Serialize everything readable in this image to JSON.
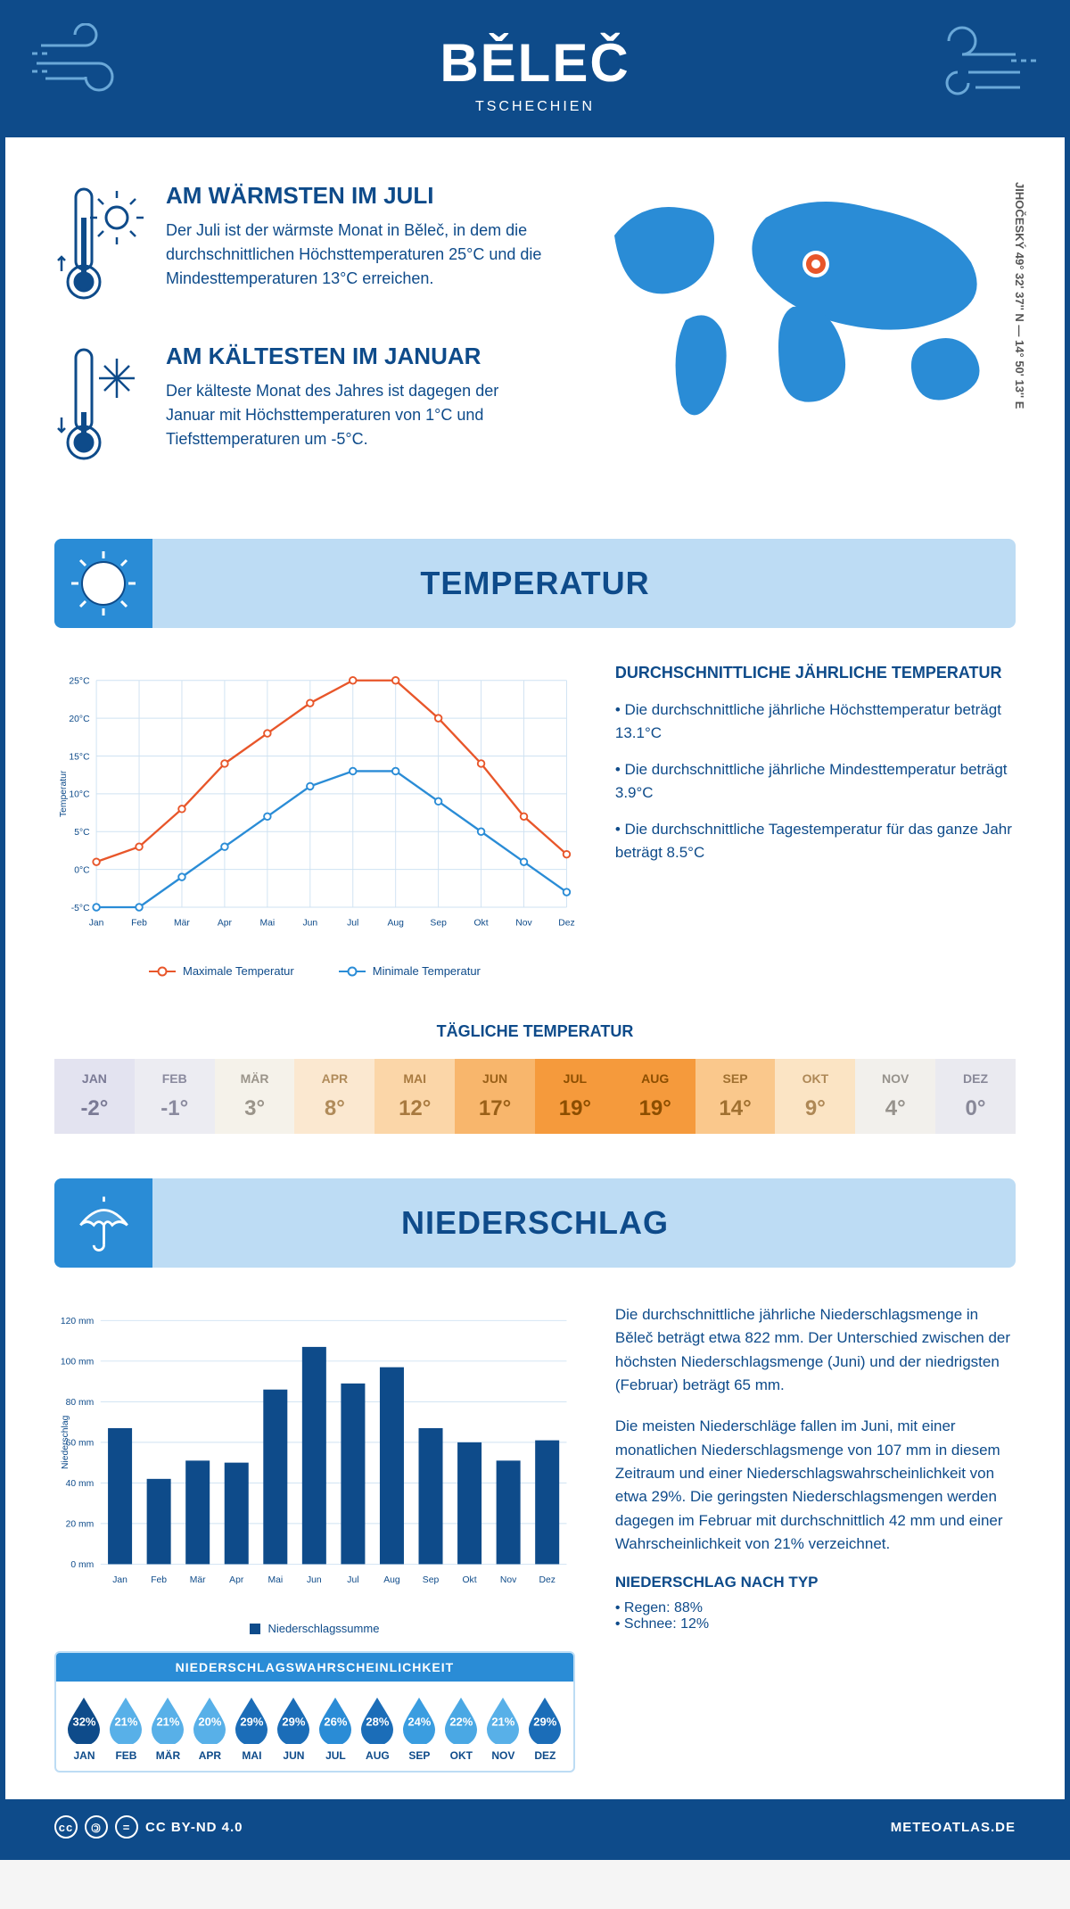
{
  "header": {
    "city": "BĚLEČ",
    "country": "TSCHECHIEN"
  },
  "coords": "JIHOČESKÝ    49° 32' 37'' N — 14° 50' 13'' E",
  "warmest": {
    "title": "AM WÄRMSTEN IM JULI",
    "text": "Der Juli ist der wärmste Monat in Běleč, in dem die durchschnittlichen Höchsttemperaturen 25°C und die Mindesttemperaturen 13°C erreichen."
  },
  "coldest": {
    "title": "AM KÄLTESTEN IM JANUAR",
    "text": "Der kälteste Monat des Jahres ist dagegen der Januar mit Höchsttemperaturen von 1°C und Tiefsttemperaturen um -5°C."
  },
  "sections": {
    "temp": "TEMPERATUR",
    "precip": "NIEDERSCHLAG"
  },
  "temp_chart": {
    "months": [
      "Jan",
      "Feb",
      "Mär",
      "Apr",
      "Mai",
      "Jun",
      "Jul",
      "Aug",
      "Sep",
      "Okt",
      "Nov",
      "Dez"
    ],
    "max": [
      1,
      3,
      8,
      14,
      18,
      22,
      25,
      25,
      20,
      14,
      7,
      2
    ],
    "min": [
      -5,
      -5,
      -1,
      3,
      7,
      11,
      13,
      13,
      9,
      5,
      1,
      -3
    ],
    "ylabel": "Temperatur",
    "yticks": [
      "-5°C",
      "0°C",
      "5°C",
      "10°C",
      "15°C",
      "20°C",
      "25°C"
    ],
    "ylim": [
      -5,
      25
    ],
    "max_color": "#e8562a",
    "min_color": "#2a8cd6",
    "grid_color": "#cfe2f2",
    "legend_max": "Maximale Temperatur",
    "legend_min": "Minimale Temperatur"
  },
  "temp_text": {
    "title": "DURCHSCHNITTLICHE JÄHRLICHE TEMPERATUR",
    "b1": "• Die durchschnittliche jährliche Höchsttemperatur beträgt 13.1°C",
    "b2": "• Die durchschnittliche jährliche Mindesttemperatur beträgt 3.9°C",
    "b3": "• Die durchschnittliche Tagestemperatur für das ganze Jahr beträgt 8.5°C"
  },
  "daily": {
    "title": "TÄGLICHE TEMPERATUR",
    "cells": [
      {
        "mon": "JAN",
        "val": "-2°",
        "bg": "#e3e3f0",
        "fg": "#7a7a95"
      },
      {
        "mon": "FEB",
        "val": "-1°",
        "bg": "#ececf2",
        "fg": "#8a8a9e"
      },
      {
        "mon": "MÄR",
        "val": "3°",
        "bg": "#f5f2ea",
        "fg": "#9a948a"
      },
      {
        "mon": "APR",
        "val": "8°",
        "bg": "#fbe8d0",
        "fg": "#b08b5a"
      },
      {
        "mon": "MAI",
        "val": "12°",
        "bg": "#fbd6a8",
        "fg": "#a87a40"
      },
      {
        "mon": "JUN",
        "val": "17°",
        "bg": "#f8b66c",
        "fg": "#9a6018"
      },
      {
        "mon": "JUL",
        "val": "19°",
        "bg": "#f59a3c",
        "fg": "#8c4e00"
      },
      {
        "mon": "AUG",
        "val": "19°",
        "bg": "#f59a3c",
        "fg": "#8c4e00"
      },
      {
        "mon": "SEP",
        "val": "14°",
        "bg": "#fac88c",
        "fg": "#a07030"
      },
      {
        "mon": "OKT",
        "val": "9°",
        "bg": "#fbe4c4",
        "fg": "#ae8856"
      },
      {
        "mon": "NOV",
        "val": "4°",
        "bg": "#f2f0ec",
        "fg": "#96928c"
      },
      {
        "mon": "DEZ",
        "val": "0°",
        "bg": "#eaeaf0",
        "fg": "#888898"
      }
    ]
  },
  "precip_chart": {
    "months": [
      "Jan",
      "Feb",
      "Mär",
      "Apr",
      "Mai",
      "Jun",
      "Jul",
      "Aug",
      "Sep",
      "Okt",
      "Nov",
      "Dez"
    ],
    "values": [
      67,
      42,
      51,
      50,
      86,
      107,
      89,
      97,
      67,
      60,
      51,
      61
    ],
    "ylabel": "Niederschlag",
    "yticks": [
      0,
      20,
      40,
      60,
      80,
      100,
      120
    ],
    "ylim": [
      0,
      120
    ],
    "bar_color": "#0e4b8a",
    "grid_color": "#cfe2f2",
    "legend": "Niederschlagssumme"
  },
  "precip_text": {
    "p1": "Die durchschnittliche jährliche Niederschlagsmenge in Běleč beträgt etwa 822 mm. Der Unterschied zwischen der höchsten Niederschlagsmenge (Juni) und der niedrigsten (Februar) beträgt 65 mm.",
    "p2": "Die meisten Niederschläge fallen im Juni, mit einer monatlichen Niederschlagsmenge von 107 mm in diesem Zeitraum und einer Niederschlagswahrscheinlichkeit von etwa 29%. Die geringsten Niederschlagsmengen werden dagegen im Februar mit durchschnittlich 42 mm und einer Wahrscheinlichkeit von 21% verzeichnet.",
    "type_title": "NIEDERSCHLAG NACH TYP",
    "type1": "• Regen: 88%",
    "type2": "• Schnee: 12%"
  },
  "prob": {
    "title": "NIEDERSCHLAGSWAHRSCHEINLICHKEIT",
    "cells": [
      {
        "mon": "JAN",
        "pct": "32%",
        "color": "#0e4b8a"
      },
      {
        "mon": "FEB",
        "pct": "21%",
        "color": "#58b0e8"
      },
      {
        "mon": "MÄR",
        "pct": "21%",
        "color": "#58b0e8"
      },
      {
        "mon": "APR",
        "pct": "20%",
        "color": "#58b0e8"
      },
      {
        "mon": "MAI",
        "pct": "29%",
        "color": "#1b6db8"
      },
      {
        "mon": "JUN",
        "pct": "29%",
        "color": "#1b6db8"
      },
      {
        "mon": "JUL",
        "pct": "26%",
        "color": "#2a8cd6"
      },
      {
        "mon": "AUG",
        "pct": "28%",
        "color": "#1b6db8"
      },
      {
        "mon": "SEP",
        "pct": "24%",
        "color": "#3a9de0"
      },
      {
        "mon": "OKT",
        "pct": "22%",
        "color": "#4aa8e4"
      },
      {
        "mon": "NOV",
        "pct": "21%",
        "color": "#58b0e8"
      },
      {
        "mon": "DEZ",
        "pct": "29%",
        "color": "#1b6db8"
      }
    ]
  },
  "footer": {
    "license": "CC BY-ND 4.0",
    "site": "METEOATLAS.DE"
  }
}
